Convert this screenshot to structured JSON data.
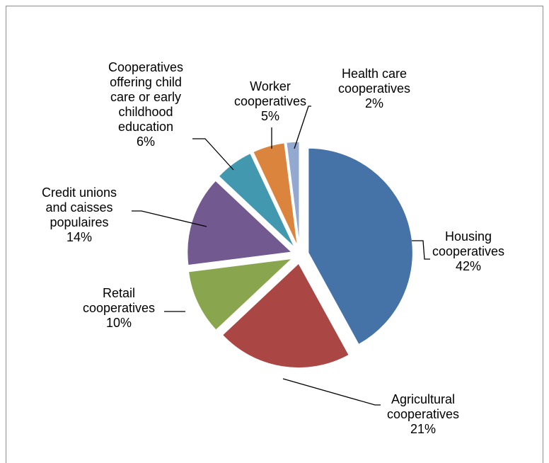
{
  "chart_data": {
    "type": "pie",
    "title": "",
    "slices": [
      {
        "name": "Housing cooperatives",
        "label_lines": [
          "Housing",
          "cooperatives"
        ],
        "value": 42,
        "pct_label": "42%",
        "color": "#4673a7"
      },
      {
        "name": "Agricultural cooperatives",
        "label_lines": [
          "Agricultural",
          "cooperatives"
        ],
        "value": 21,
        "pct_label": "21%",
        "color": "#aa4644"
      },
      {
        "name": "Retail cooperatives",
        "label_lines": [
          "Retail",
          "cooperatives"
        ],
        "value": 10,
        "pct_label": "10%",
        "color": "#89a54e"
      },
      {
        "name": "Credit unions and caisses populaires",
        "label_lines": [
          "Credit unions",
          "and caisses",
          "populaires"
        ],
        "value": 14,
        "pct_label": "14%",
        "color": "#725990"
      },
      {
        "name": "Cooperatives offering child care or early childhood education",
        "label_lines": [
          "Cooperatives",
          "offering child",
          "care or early",
          "childhood",
          "education"
        ],
        "value": 6,
        "pct_label": "6%",
        "color": "#4198af"
      },
      {
        "name": "Worker cooperatives",
        "label_lines": [
          "Worker",
          "cooperatives"
        ],
        "value": 5,
        "pct_label": "5%",
        "color": "#db843d"
      },
      {
        "name": "Health care cooperatives",
        "label_lines": [
          "Health care",
          "cooperatives"
        ],
        "value": 2,
        "pct_label": "2%",
        "color": "#93a9cf"
      }
    ],
    "legend": "none",
    "data_labels": "outside-with-leader-lines"
  }
}
